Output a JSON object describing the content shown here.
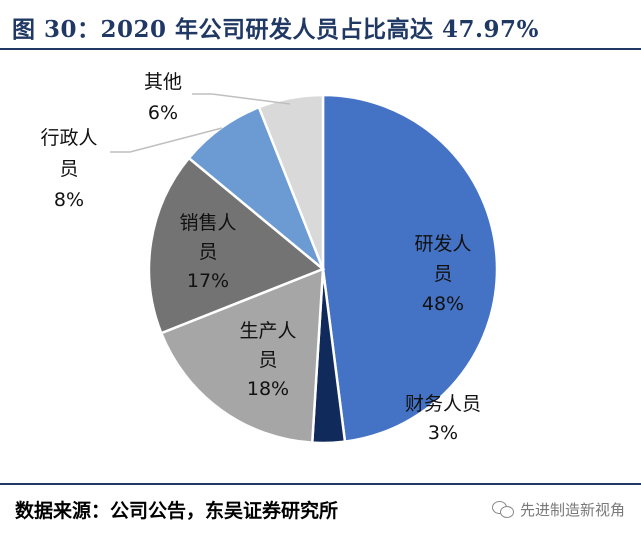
{
  "figure": {
    "title": "图 30：2020 年公司研发人员占比高达 47.97%",
    "source": "数据来源：公司公告，东吴证券研究所",
    "watermark": "先进制造新视角",
    "watermark_icon": "wechat-icon"
  },
  "chart_data": {
    "type": "pie",
    "slices": [
      {
        "label": [
          "研发人",
          "员"
        ],
        "percent_label": "48%",
        "value": 47.97,
        "color": "#4472c4"
      },
      {
        "label": [
          "财务人员"
        ],
        "percent_label": "3%",
        "value": 3,
        "color": "#112a5c"
      },
      {
        "label": [
          "生产人",
          "员"
        ],
        "percent_label": "18%",
        "value": 18,
        "color": "#a6a6a6"
      },
      {
        "label": [
          "销售人",
          "员"
        ],
        "percent_label": "17%",
        "value": 17,
        "color": "#737373"
      },
      {
        "label": [
          "行政人",
          "员"
        ],
        "percent_label": "8%",
        "value": 8,
        "color": "#6b9bd2"
      },
      {
        "label": [
          "其他"
        ],
        "percent_label": "6%",
        "value": 6,
        "color": "#d9d9d9"
      }
    ],
    "start_angle_deg": 0,
    "direction": "clockwise",
    "legend": "none"
  }
}
